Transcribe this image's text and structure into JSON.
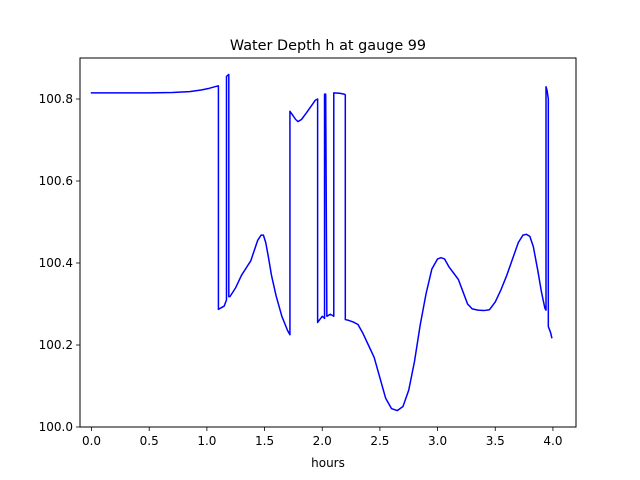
{
  "chart_data": {
    "type": "line",
    "title": "Water Depth h at gauge 99",
    "xlabel": "hours",
    "ylabel": "",
    "xlim": [
      -0.1,
      4.2
    ],
    "ylim": [
      100.0,
      100.9
    ],
    "xticks": [
      0.0,
      0.5,
      1.0,
      1.5,
      2.0,
      2.5,
      3.0,
      3.5,
      4.0
    ],
    "xtick_labels": [
      "0.0",
      "0.5",
      "1.0",
      "1.5",
      "2.0",
      "2.5",
      "3.0",
      "3.5",
      "4.0"
    ],
    "yticks": [
      100.0,
      100.2,
      100.4,
      100.6,
      100.8
    ],
    "ytick_labels": [
      "100.0",
      "100.2",
      "100.4",
      "100.6",
      "100.8"
    ],
    "grid": false,
    "legend": "none",
    "series": [
      {
        "color": "#0000ff",
        "x": [
          0.0,
          0.25,
          0.5,
          0.7,
          0.85,
          0.95,
          1.02,
          1.07,
          1.1,
          1.1,
          1.15,
          1.17,
          1.17,
          1.19,
          1.19,
          1.2,
          1.25,
          1.3,
          1.35,
          1.38,
          1.41,
          1.44,
          1.47,
          1.49,
          1.51,
          1.53,
          1.56,
          1.6,
          1.65,
          1.7,
          1.72,
          1.72,
          1.74,
          1.77,
          1.79,
          1.82,
          1.86,
          1.91,
          1.94,
          1.96,
          1.96,
          2.0,
          2.02,
          2.02,
          2.03,
          2.04,
          2.07,
          2.09,
          2.1,
          2.1,
          2.15,
          2.19,
          2.2,
          2.2,
          2.23,
          2.27,
          2.31,
          2.35,
          2.4,
          2.45,
          2.5,
          2.55,
          2.6,
          2.65,
          2.7,
          2.75,
          2.8,
          2.85,
          2.9,
          2.95,
          3.0,
          3.03,
          3.06,
          3.1,
          3.14,
          3.18,
          3.22,
          3.26,
          3.3,
          3.35,
          3.4,
          3.45,
          3.5,
          3.55,
          3.6,
          3.65,
          3.7,
          3.74,
          3.77,
          3.8,
          3.83,
          3.87,
          3.9,
          3.93,
          3.94,
          3.94,
          3.95,
          3.96,
          3.96,
          3.98,
          3.99
        ],
        "y": [
          100.815,
          100.815,
          100.815,
          100.816,
          100.818,
          100.822,
          100.826,
          100.83,
          100.832,
          100.287,
          100.295,
          100.31,
          100.855,
          100.86,
          100.318,
          100.318,
          100.34,
          100.37,
          100.392,
          100.405,
          100.43,
          100.455,
          100.468,
          100.468,
          100.45,
          100.42,
          100.37,
          100.32,
          100.27,
          100.235,
          100.225,
          100.77,
          100.762,
          100.75,
          100.745,
          100.75,
          100.765,
          100.785,
          100.797,
          100.8,
          100.255,
          100.27,
          100.265,
          100.812,
          100.812,
          100.27,
          100.275,
          100.272,
          100.27,
          100.815,
          100.814,
          100.812,
          100.81,
          100.262,
          100.26,
          100.256,
          100.25,
          100.23,
          100.2,
          100.17,
          100.12,
          100.07,
          100.045,
          100.04,
          100.05,
          100.09,
          100.16,
          100.25,
          100.325,
          100.385,
          100.41,
          100.413,
          100.41,
          100.39,
          100.375,
          100.36,
          100.33,
          100.3,
          100.288,
          100.285,
          100.284,
          100.286,
          100.305,
          100.335,
          100.37,
          100.41,
          100.45,
          100.468,
          100.47,
          100.465,
          100.44,
          100.38,
          100.33,
          100.29,
          100.285,
          100.83,
          100.82,
          100.8,
          100.245,
          100.23,
          100.218
        ]
      }
    ]
  }
}
